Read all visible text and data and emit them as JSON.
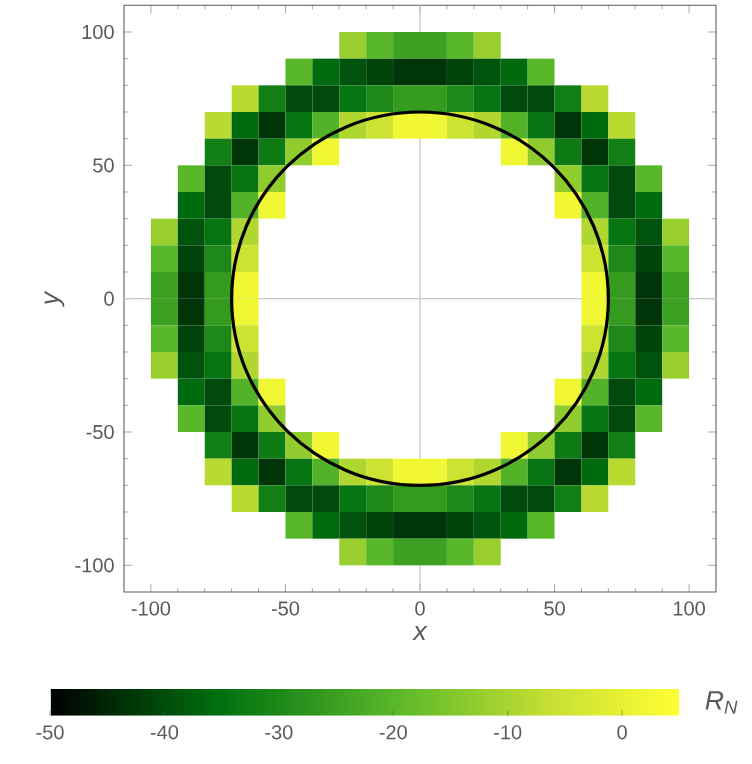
{
  "chart_data": {
    "type": "heatmap",
    "xlabel": "x",
    "ylabel": "y",
    "clabel": "R$_{N}$",
    "xlim": [
      -110,
      110
    ],
    "ylim": [
      -110,
      110
    ],
    "xticks": [
      -100,
      -50,
      0,
      50,
      100
    ],
    "yticks": [
      -100,
      -50,
      0,
      50,
      100
    ],
    "clim": [
      -50,
      5
    ],
    "cticks": [
      -50,
      -40,
      -30,
      -20,
      -10,
      0
    ],
    "x": [
      -95,
      -85,
      -75,
      -65,
      -55,
      -45,
      -35,
      -25,
      -15,
      -5,
      5,
      15,
      25,
      35,
      45,
      55,
      65,
      75,
      85,
      95
    ],
    "y": [
      95,
      85,
      75,
      65,
      55,
      45,
      35,
      25,
      15,
      5,
      -5,
      -15,
      -25,
      -35,
      -45,
      -55,
      -65,
      -75,
      -85,
      -95
    ],
    "cells": [
      [
        null,
        null,
        null,
        null,
        null,
        null,
        null,
        -12,
        -20,
        -25,
        -25,
        -20,
        -12,
        null,
        null,
        null,
        null,
        null,
        null,
        null
      ],
      [
        null,
        null,
        null,
        null,
        null,
        -20,
        -36,
        -39,
        -41,
        -43,
        -43,
        -41,
        -39,
        -36,
        -20,
        null,
        null,
        null,
        null,
        null
      ],
      [
        null,
        null,
        null,
        -8,
        -32,
        -40,
        -40,
        -34,
        -30,
        -26,
        -26,
        -30,
        -34,
        -40,
        -40,
        -32,
        -8,
        null,
        null,
        null
      ],
      [
        null,
        null,
        -8,
        -36,
        -43,
        -34,
        -21,
        -9,
        -5,
        2,
        2,
        -5,
        -9,
        -21,
        -34,
        -43,
        -36,
        -8,
        null,
        null
      ],
      [
        null,
        null,
        -32,
        -43,
        -33,
        -13,
        2,
        null,
        null,
        null,
        null,
        null,
        null,
        2,
        -13,
        -33,
        -43,
        -32,
        null,
        null
      ],
      [
        null,
        -20,
        -40,
        -34,
        -13,
        null,
        null,
        null,
        null,
        null,
        null,
        null,
        null,
        null,
        null,
        -13,
        -34,
        -40,
        -20,
        null
      ],
      [
        null,
        -36,
        -40,
        -21,
        2,
        null,
        null,
        null,
        null,
        null,
        null,
        null,
        null,
        null,
        null,
        2,
        -21,
        -40,
        -36,
        null
      ],
      [
        -12,
        -39,
        -34,
        -9,
        null,
        null,
        null,
        null,
        null,
        null,
        null,
        null,
        null,
        null,
        null,
        null,
        -9,
        -34,
        -39,
        -12
      ],
      [
        -20,
        -41,
        -30,
        -5,
        null,
        null,
        null,
        null,
        null,
        null,
        null,
        null,
        null,
        null,
        null,
        null,
        -5,
        -30,
        -41,
        -20
      ],
      [
        -25,
        -43,
        -26,
        2,
        null,
        null,
        null,
        null,
        null,
        null,
        null,
        null,
        null,
        null,
        null,
        null,
        2,
        -26,
        -43,
        -25
      ],
      [
        -25,
        -43,
        -26,
        2,
        null,
        null,
        null,
        null,
        null,
        null,
        null,
        null,
        null,
        null,
        null,
        null,
        2,
        -26,
        -43,
        -25
      ],
      [
        -20,
        -41,
        -30,
        -5,
        null,
        null,
        null,
        null,
        null,
        null,
        null,
        null,
        null,
        null,
        null,
        null,
        -5,
        -30,
        -41,
        -20
      ],
      [
        -12,
        -39,
        -34,
        -9,
        null,
        null,
        null,
        null,
        null,
        null,
        null,
        null,
        null,
        null,
        null,
        null,
        -9,
        -34,
        -39,
        -12
      ],
      [
        null,
        -36,
        -40,
        -21,
        2,
        null,
        null,
        null,
        null,
        null,
        null,
        null,
        null,
        null,
        null,
        2,
        -21,
        -40,
        -36,
        null
      ],
      [
        null,
        -20,
        -40,
        -34,
        -13,
        null,
        null,
        null,
        null,
        null,
        null,
        null,
        null,
        null,
        null,
        -13,
        -34,
        -40,
        -20,
        null
      ],
      [
        null,
        null,
        -32,
        -43,
        -33,
        -13,
        2,
        null,
        null,
        null,
        null,
        null,
        null,
        2,
        -13,
        -33,
        -43,
        -32,
        null,
        null
      ],
      [
        null,
        null,
        -8,
        -36,
        -43,
        -34,
        -21,
        -9,
        -5,
        2,
        2,
        -5,
        -9,
        -21,
        -34,
        -43,
        -36,
        -8,
        null,
        null
      ],
      [
        null,
        null,
        null,
        -8,
        -32,
        -40,
        -40,
        -34,
        -30,
        -26,
        -26,
        -30,
        -34,
        -40,
        -40,
        -32,
        -8,
        null,
        null,
        null
      ],
      [
        null,
        null,
        null,
        null,
        null,
        -20,
        -36,
        -39,
        -41,
        -43,
        -43,
        -41,
        -39,
        -36,
        -20,
        null,
        null,
        null,
        null,
        null
      ],
      [
        null,
        null,
        null,
        null,
        null,
        null,
        null,
        -12,
        -20,
        -25,
        -25,
        -20,
        -12,
        null,
        null,
        null,
        null,
        null,
        null,
        null
      ]
    ]
  }
}
